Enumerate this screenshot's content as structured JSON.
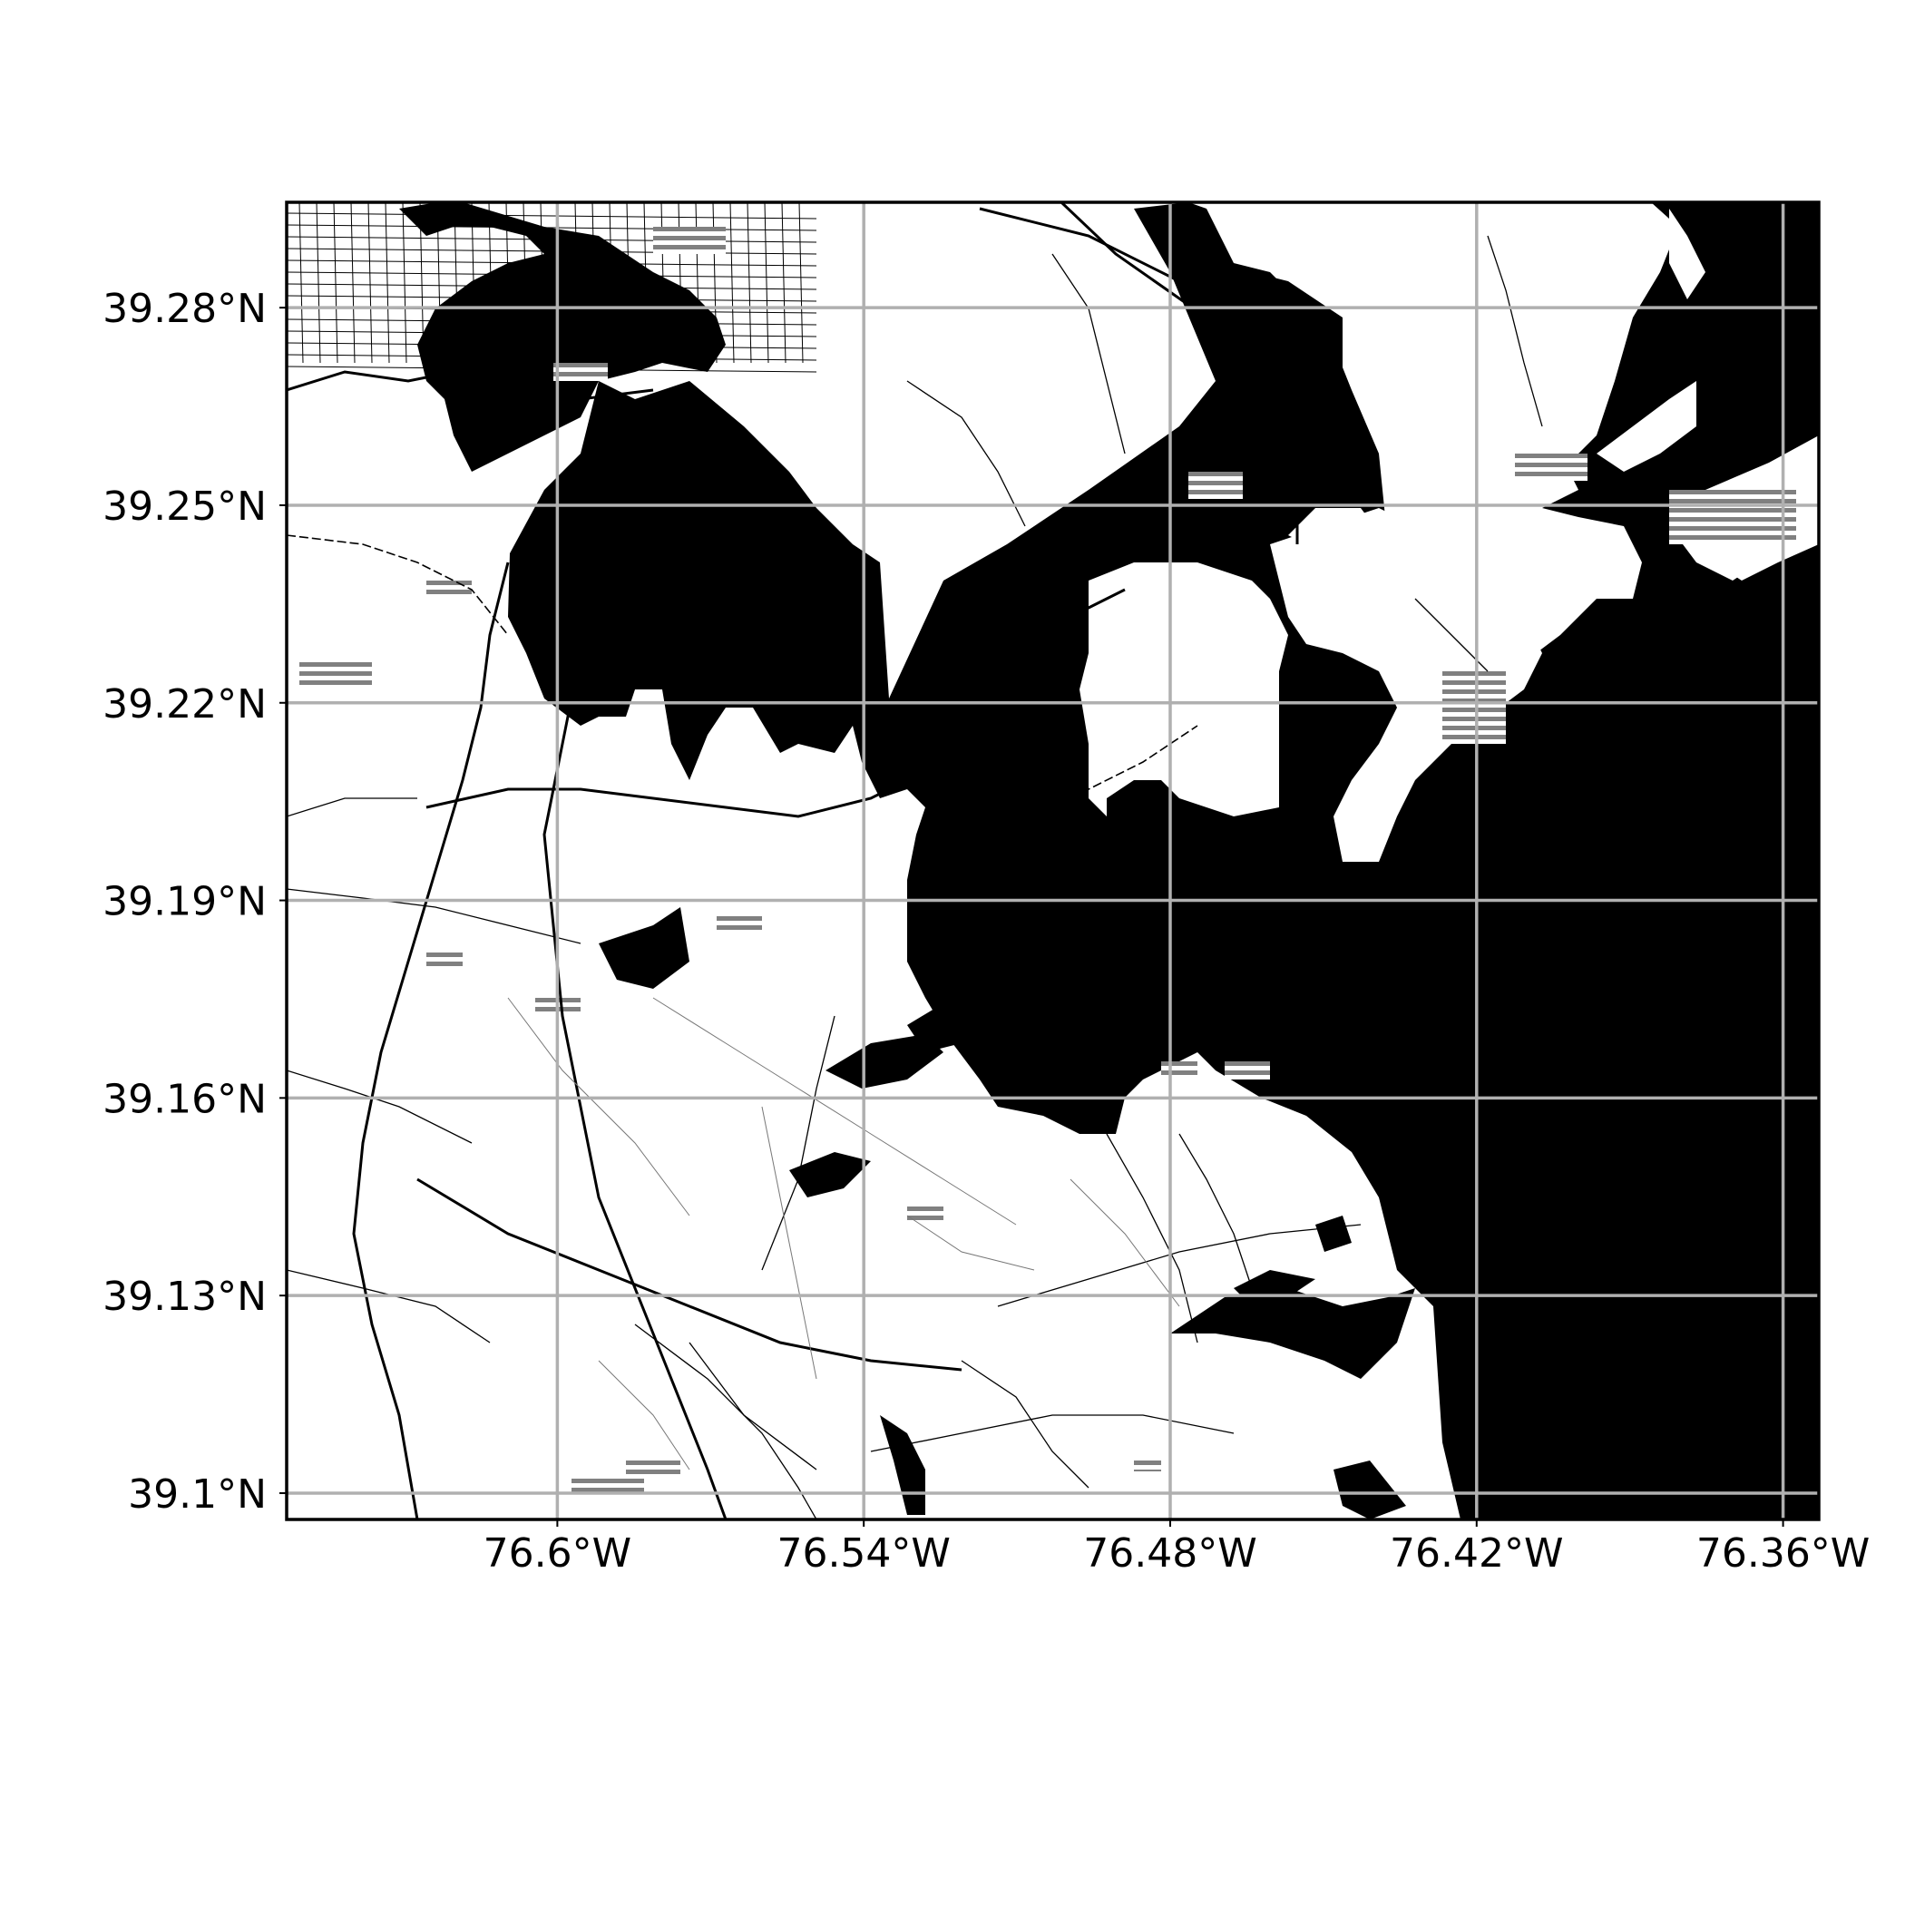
{
  "map": {
    "kind": "street basemap with latitude/longitude graticule",
    "region": "Baltimore harbor, Patapsco River and Chesapeake Bay shoreline",
    "colors": {
      "water": "#000000",
      "land": "#ffffff",
      "roads": "#000000",
      "shading": "#808080",
      "grid": "#b0b0b0",
      "frame": "#000000",
      "text": "#000000"
    },
    "grid": true,
    "lon_range": [
      -76.653,
      -76.353
    ],
    "lat_range": [
      39.096,
      39.296
    ],
    "x_ticks": [
      {
        "value": -76.6,
        "label": "76.6°W"
      },
      {
        "value": -76.54,
        "label": "76.54°W"
      },
      {
        "value": -76.48,
        "label": "76.48°W"
      },
      {
        "value": -76.42,
        "label": "76.42°W"
      },
      {
        "value": -76.36,
        "label": "76.36°W"
      }
    ],
    "y_ticks": [
      {
        "value": 39.28,
        "label": "39.28°N"
      },
      {
        "value": 39.25,
        "label": "39.25°N"
      },
      {
        "value": 39.22,
        "label": "39.22°N"
      },
      {
        "value": 39.19,
        "label": "39.19°N"
      },
      {
        "value": 39.16,
        "label": "39.16°N"
      },
      {
        "value": 39.13,
        "label": "39.13°N"
      },
      {
        "value": 39.1,
        "label": "39.1°N"
      }
    ]
  }
}
